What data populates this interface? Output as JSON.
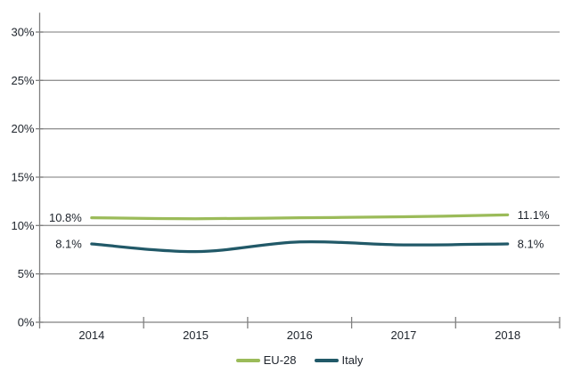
{
  "chart_data": {
    "type": "line",
    "title": "",
    "xlabel": "",
    "ylabel": "",
    "categories": [
      "2014",
      "2015",
      "2016",
      "2017",
      "2018"
    ],
    "series": [
      {
        "name": "EU-28",
        "color": "#9BBB59",
        "values": [
          10.8,
          10.7,
          10.8,
          10.9,
          11.1
        ]
      },
      {
        "name": "Italy",
        "color": "#215968",
        "values": [
          8.1,
          7.3,
          8.3,
          8.0,
          8.1
        ]
      }
    ],
    "point_labels": [
      {
        "series": "EU-28",
        "category": "2014",
        "text": "10.8%",
        "side": "left"
      },
      {
        "series": "EU-28",
        "category": "2018",
        "text": "11.1%",
        "side": "right"
      },
      {
        "series": "Italy",
        "category": "2014",
        "text": "8.1%",
        "side": "left"
      },
      {
        "series": "Italy",
        "category": "2018",
        "text": "8.1%",
        "side": "right"
      }
    ],
    "ylim": [
      0,
      32
    ],
    "ytick_values": [
      0,
      5,
      10,
      15,
      20,
      25,
      30
    ],
    "ytick_labels": [
      "0%",
      "5%",
      "10%",
      "15%",
      "20%",
      "25%",
      "30%"
    ],
    "grid": true,
    "smoothed_lines": true,
    "legend_position": "bottom",
    "colors": {
      "background": "#ffffff",
      "gridline": "#949494",
      "axis": "#808080",
      "text": "#20262e"
    }
  }
}
